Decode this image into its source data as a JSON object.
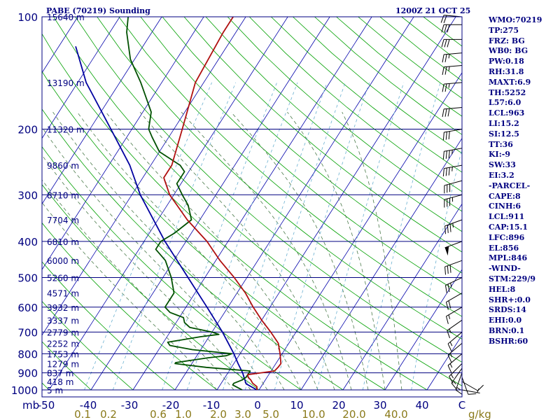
{
  "header": {
    "title": "PABE (70219) Sounding",
    "time": "1200Z 21 OCT 25"
  },
  "colors": {
    "frame": "#000080",
    "isobar": "#000080",
    "isotherm": "#0000aa",
    "dry_adiabat": "#00a000",
    "moist_adiabat": "#4a7a4a",
    "mixing_ratio": "#6ab0d0",
    "temperature": "#b01010",
    "dewpoint": "#005000",
    "parcel": "#0000a0",
    "wind": "#000000"
  },
  "chart_data": {
    "type": "skew-t",
    "xlabel_pressure_unit": "mb",
    "mixing_ratio_unit": "g/kg",
    "pressure_ticks": [
      "100",
      "200",
      "300",
      "400",
      "500",
      "600",
      "700",
      "800",
      "900",
      "1000"
    ],
    "temperature_ticks": [
      "-50",
      "-40",
      "-30",
      "-20",
      "-10",
      "0",
      "10",
      "20",
      "30",
      "40",
      "C"
    ],
    "mixing_ratio_labels": [
      "0.1",
      "0.2",
      "0.6",
      "1.0",
      "2.0",
      "3.0",
      "5.0",
      "10.0",
      "20.0",
      "40.0"
    ],
    "height_labels": [
      {
        "p": 100,
        "label": "15640 m"
      },
      {
        "p": 150,
        "label": "13190 m"
      },
      {
        "p": 200,
        "label": "11320 m"
      },
      {
        "p": 250,
        "label": "9860 m"
      },
      {
        "p": 300,
        "label": "8710 m"
      },
      {
        "p": 350,
        "label": "7704 m"
      },
      {
        "p": 400,
        "label": "6810 m"
      },
      {
        "p": 450,
        "label": "6000 m"
      },
      {
        "p": 500,
        "label": "5260 m"
      },
      {
        "p": 550,
        "label": "4571 m"
      },
      {
        "p": 600,
        "label": "3932 m"
      },
      {
        "p": 650,
        "label": "3337 m"
      },
      {
        "p": 700,
        "label": "2779 m"
      },
      {
        "p": 750,
        "label": "2252 m"
      },
      {
        "p": 800,
        "label": "1753 m"
      },
      {
        "p": 850,
        "label": "1279 m"
      },
      {
        "p": 900,
        "label": "837 m"
      },
      {
        "p": 950,
        "label": "418 m"
      },
      {
        "p": 1000,
        "label": "5 m"
      }
    ],
    "temperature": [
      {
        "p": 1000,
        "t": -0.5
      },
      {
        "p": 980,
        "t": -1
      },
      {
        "p": 960,
        "t": -2.5
      },
      {
        "p": 940,
        "t": -3.5
      },
      {
        "p": 925,
        "t": -4.5
      },
      {
        "p": 910,
        "t": -5
      },
      {
        "p": 890,
        "t": 0.8
      },
      {
        "p": 870,
        "t": 1.1
      },
      {
        "p": 850,
        "t": 1.2
      },
      {
        "p": 800,
        "t": -0.5
      },
      {
        "p": 750,
        "t": -2.5
      },
      {
        "p": 700,
        "t": -6
      },
      {
        "p": 650,
        "t": -10
      },
      {
        "p": 600,
        "t": -14
      },
      {
        "p": 550,
        "t": -18
      },
      {
        "p": 500,
        "t": -23
      },
      {
        "p": 450,
        "t": -29
      },
      {
        "p": 400,
        "t": -35
      },
      {
        "p": 350,
        "t": -43
      },
      {
        "p": 300,
        "t": -51
      },
      {
        "p": 270,
        "t": -55
      },
      {
        "p": 250,
        "t": -55
      },
      {
        "p": 200,
        "t": -58
      },
      {
        "p": 150,
        "t": -62
      },
      {
        "p": 110,
        "t": -63
      },
      {
        "p": 100,
        "t": -63
      }
    ],
    "dewpoint": [
      {
        "p": 1000,
        "t": -4
      },
      {
        "p": 990,
        "t": -5
      },
      {
        "p": 980,
        "t": -6
      },
      {
        "p": 970,
        "t": -7
      },
      {
        "p": 960,
        "t": -7
      },
      {
        "p": 940,
        "t": -5.5
      },
      {
        "p": 925,
        "t": -5
      },
      {
        "p": 900,
        "t": -5
      },
      {
        "p": 890,
        "t": -5
      },
      {
        "p": 870,
        "t": -16
      },
      {
        "p": 850,
        "t": -24
      },
      {
        "p": 845,
        "t": -24
      },
      {
        "p": 820,
        "t": -17
      },
      {
        "p": 810,
        "t": -13
      },
      {
        "p": 800,
        "t": -12
      },
      {
        "p": 780,
        "t": -22
      },
      {
        "p": 760,
        "t": -28
      },
      {
        "p": 745,
        "t": -29
      },
      {
        "p": 720,
        "t": -22
      },
      {
        "p": 710,
        "t": -18
      },
      {
        "p": 700,
        "t": -20
      },
      {
        "p": 680,
        "t": -26
      },
      {
        "p": 660,
        "t": -28
      },
      {
        "p": 640,
        "t": -29
      },
      {
        "p": 620,
        "t": -33
      },
      {
        "p": 600,
        "t": -35
      },
      {
        "p": 550,
        "t": -35
      },
      {
        "p": 500,
        "t": -38
      },
      {
        "p": 450,
        "t": -42
      },
      {
        "p": 420,
        "t": -46
      },
      {
        "p": 400,
        "t": -46
      },
      {
        "p": 380,
        "t": -44
      },
      {
        "p": 350,
        "t": -42
      },
      {
        "p": 320,
        "t": -45
      },
      {
        "p": 300,
        "t": -48
      },
      {
        "p": 280,
        "t": -51
      },
      {
        "p": 260,
        "t": -51
      },
      {
        "p": 250,
        "t": -53
      },
      {
        "p": 230,
        "t": -60
      },
      {
        "p": 210,
        "t": -64
      },
      {
        "p": 200,
        "t": -66
      },
      {
        "p": 180,
        "t": -68
      },
      {
        "p": 150,
        "t": -75
      },
      {
        "p": 130,
        "t": -81
      },
      {
        "p": 110,
        "t": -86
      },
      {
        "p": 100,
        "t": -88
      }
    ],
    "parcel": [
      {
        "p": 1000,
        "t": -0.5
      },
      {
        "p": 963,
        "t": -4
      },
      {
        "p": 900,
        "t": -6.5
      },
      {
        "p": 850,
        "t": -9
      },
      {
        "p": 800,
        "t": -11.5
      },
      {
        "p": 700,
        "t": -17.5
      },
      {
        "p": 600,
        "t": -25
      },
      {
        "p": 500,
        "t": -34
      },
      {
        "p": 400,
        "t": -45
      },
      {
        "p": 300,
        "t": -58
      },
      {
        "p": 250,
        "t": -65
      },
      {
        "p": 200,
        "t": -75
      },
      {
        "p": 150,
        "t": -88
      },
      {
        "p": 120,
        "t": -96
      }
    ],
    "wind_barbs": [
      {
        "p": 1000,
        "dir": 100,
        "spd": 5
      },
      {
        "p": 950,
        "dir": 120,
        "spd": 10
      },
      {
        "p": 925,
        "dir": 160,
        "spd": 10
      },
      {
        "p": 900,
        "dir": 200,
        "spd": 15
      },
      {
        "p": 875,
        "dir": 215,
        "spd": 15
      },
      {
        "p": 850,
        "dir": 225,
        "spd": 15
      },
      {
        "p": 800,
        "dir": 230,
        "spd": 15
      },
      {
        "p": 750,
        "dir": 230,
        "spd": 15
      },
      {
        "p": 700,
        "dir": 230,
        "spd": 15
      },
      {
        "p": 650,
        "dir": 235,
        "spd": 15
      },
      {
        "p": 600,
        "dir": 240,
        "spd": 15
      },
      {
        "p": 550,
        "dir": 240,
        "spd": 20
      },
      {
        "p": 500,
        "dir": 245,
        "spd": 25
      },
      {
        "p": 450,
        "dir": 250,
        "spd": 30
      },
      {
        "p": 400,
        "dir": 250,
        "spd": 50
      },
      {
        "p": 350,
        "dir": 250,
        "spd": 35
      },
      {
        "p": 300,
        "dir": 255,
        "spd": 35
      },
      {
        "p": 275,
        "dir": 255,
        "spd": 30
      },
      {
        "p": 250,
        "dir": 260,
        "spd": 35
      },
      {
        "p": 225,
        "dir": 260,
        "spd": 35
      },
      {
        "p": 200,
        "dir": 260,
        "spd": 30
      },
      {
        "p": 175,
        "dir": 265,
        "spd": 30
      },
      {
        "p": 150,
        "dir": 265,
        "spd": 25
      },
      {
        "p": 135,
        "dir": 265,
        "spd": 25
      },
      {
        "p": 125,
        "dir": 265,
        "spd": 25
      },
      {
        "p": 115,
        "dir": 270,
        "spd": 30
      },
      {
        "p": 105,
        "dir": 270,
        "spd": 30
      },
      {
        "p": 100,
        "dir": 275,
        "spd": 20
      }
    ]
  },
  "indices": [
    "WMO:70219",
    "TP:275",
    "FRZ: BG",
    "WB0: BG",
    "PW:0.18",
    "RH:31.8",
    "MAXT:6.9",
    "TH:5252",
    "L57:6.0",
    "LCL:963",
    "LI:15.2",
    "SI:12.5",
    "TT:36",
    "KI:-9",
    "SW:33",
    "EI:3.2",
    "-PARCEL-",
    "CAPE:8",
    "CINH:6",
    "LCL:911",
    "CAP:15.1",
    "LFC:896",
    "EL:856",
    "MPL:846",
    "-WIND-",
    "STM:229/9",
    "HEL:8",
    "SHR+:0.0",
    "SRDS:14",
    "EHI:0.0",
    "BRN:0.1",
    "BSHR:60"
  ]
}
